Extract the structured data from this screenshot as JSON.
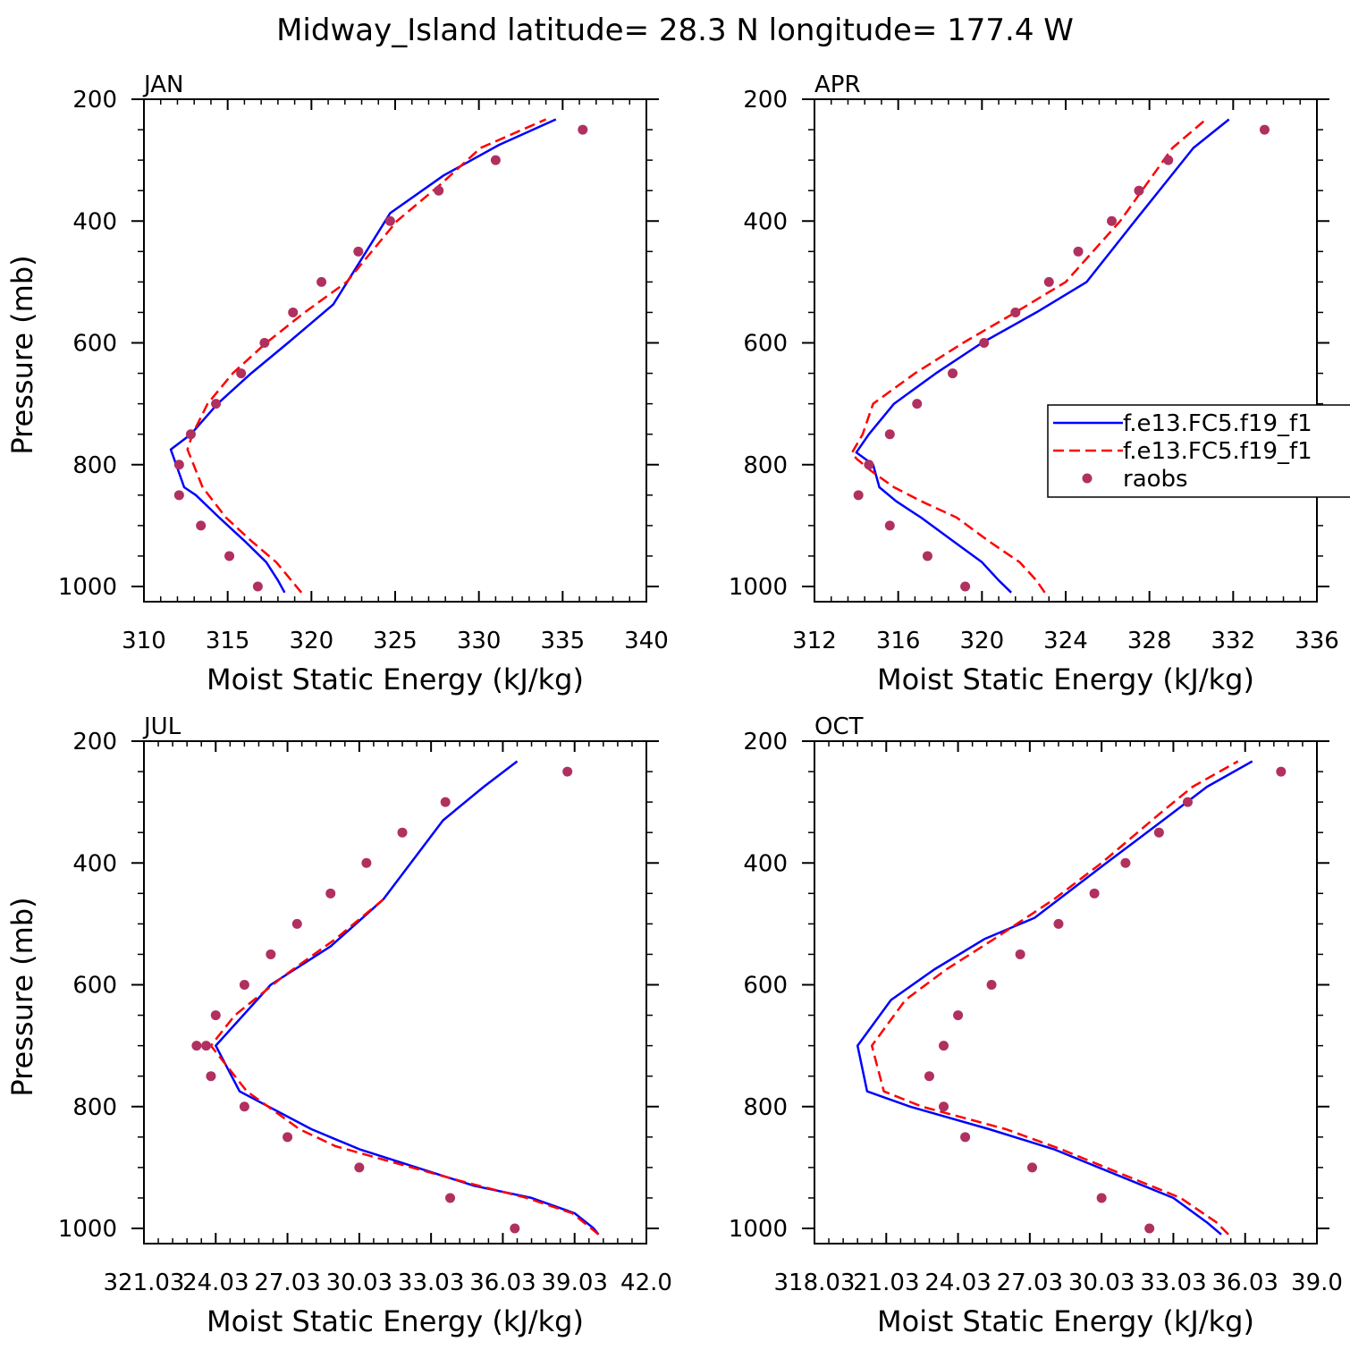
{
  "figure": {
    "title": "Midway_Island  latitude= 28.3 N longitude= 177.4 W"
  },
  "colors": {
    "model1": "#0000ff",
    "model2": "#ff0000",
    "raobs": "#b03060",
    "axes": "#000000",
    "background": "#ffffff"
  },
  "legend": {
    "placement": "right of APR panel (clipped at figure edge)",
    "entries": [
      {
        "label": "f.e13.FC5.f19_f1",
        "style": "solid",
        "color": "#0000ff"
      },
      {
        "label": "f.e13.FC5.f19_f1",
        "style": "dashed",
        "color": "#ff0000"
      },
      {
        "label": "raobs",
        "style": "marker",
        "color": "#b03060"
      }
    ]
  },
  "chart_data": [
    {
      "type": "line",
      "panel": "JAN",
      "title": "JAN",
      "xlabel": "Moist Static Energy (kJ/kg)",
      "ylabel": "Pressure (mb)",
      "xlim": [
        310,
        340
      ],
      "ylim": [
        1000,
        200
      ],
      "y_reversed": true,
      "x_ticks": [
        310,
        315,
        320,
        325,
        330,
        335,
        340
      ],
      "x_tick_labels": [
        "310",
        "315",
        "320",
        "325",
        "330",
        "335",
        "340"
      ],
      "y_ticks": [
        200,
        400,
        600,
        800,
        1000
      ],
      "y_tick_labels": [
        "200",
        "400",
        "600",
        "800",
        "1000"
      ],
      "series": [
        {
          "name": "f.e13.FC5.f19_f1",
          "style": "solid",
          "color": "#0000ff",
          "x": [
            318.4,
            318.0,
            317.3,
            316.0,
            314.5,
            313.1,
            312.4,
            311.6,
            312.8,
            314.4,
            316.4,
            318.6,
            321.3,
            324.7,
            327.9,
            331.2,
            334.6
          ],
          "y": [
            1010,
            990,
            960,
            925,
            887,
            850,
            837,
            775,
            750,
            700,
            650,
            600,
            537,
            387,
            325,
            275,
            233
          ]
        },
        {
          "name": "f.e13.FC5.f19_f1",
          "style": "dashed",
          "color": "#ff0000",
          "x": [
            319.4,
            318.8,
            317.9,
            316.4,
            314.9,
            313.5,
            312.6,
            312.9,
            313.8,
            315.3,
            317.3,
            319.6,
            322.1,
            325.1,
            327.7,
            330.1,
            334.0
          ],
          "y": [
            1010,
            990,
            960,
            925,
            887,
            837,
            775,
            750,
            700,
            650,
            600,
            550,
            500,
            400,
            340,
            280,
            233
          ]
        }
      ],
      "points": {
        "name": "raobs",
        "color": "#b03060",
        "x": [
          316.8,
          315.1,
          313.4,
          312.1,
          312.1,
          312.8,
          314.3,
          315.8,
          317.2,
          318.9,
          320.6,
          322.8,
          324.7,
          327.6,
          331.0,
          336.2
        ],
        "y": [
          1000,
          950,
          900,
          850,
          800,
          750,
          700,
          650,
          600,
          550,
          500,
          450,
          400,
          350,
          300,
          250
        ]
      }
    },
    {
      "type": "line",
      "panel": "APR",
      "title": "APR",
      "xlabel": "Moist Static Energy (kJ/kg)",
      "ylabel": "",
      "xlim": [
        312,
        336
      ],
      "ylim": [
        1000,
        200
      ],
      "y_reversed": true,
      "x_ticks": [
        312,
        316,
        320,
        324,
        328,
        332,
        336
      ],
      "x_tick_labels": [
        "312",
        "316",
        "320",
        "324",
        "328",
        "332",
        "336"
      ],
      "y_ticks": [
        200,
        400,
        600,
        800,
        1000
      ],
      "y_tick_labels": [
        "200",
        "400",
        "600",
        "800",
        "1000"
      ],
      "series": [
        {
          "name": "f.e13.FC5.f19_f1",
          "style": "solid",
          "color": "#0000ff",
          "x": [
            321.4,
            320.8,
            320.0,
            318.6,
            317.1,
            315.9,
            315.1,
            314.8,
            314.0,
            314.6,
            315.8,
            317.8,
            320.0,
            322.6,
            325.0,
            327.3,
            328.7,
            330.1,
            331.8
          ],
          "y": [
            1010,
            990,
            960,
            925,
            887,
            860,
            837,
            800,
            780,
            750,
            700,
            650,
            600,
            550,
            500,
            400,
            340,
            280,
            233
          ]
        },
        {
          "name": "f.e13.FC5.f19_f1",
          "style": "dashed",
          "color": "#ff0000",
          "x": [
            323.0,
            322.6,
            321.8,
            320.3,
            318.8,
            317.1,
            315.8,
            314.7,
            314.0,
            313.8,
            314.3,
            314.8,
            316.8,
            319.1,
            321.6,
            324.0,
            326.6,
            329.1,
            330.7
          ],
          "y": [
            1010,
            990,
            960,
            925,
            887,
            860,
            837,
            810,
            790,
            780,
            750,
            700,
            650,
            600,
            550,
            500,
            400,
            280,
            233
          ]
        }
      ],
      "points": {
        "name": "raobs",
        "color": "#b03060",
        "x": [
          319.2,
          317.4,
          315.6,
          314.1,
          314.6,
          315.6,
          316.9,
          318.6,
          320.1,
          321.6,
          323.2,
          324.6,
          326.2,
          327.5,
          328.9,
          333.5
        ],
        "y": [
          1000,
          950,
          900,
          850,
          800,
          750,
          700,
          650,
          600,
          550,
          500,
          450,
          400,
          350,
          300,
          250
        ]
      }
    },
    {
      "type": "line",
      "panel": "JUL",
      "title": "JUL",
      "xlabel": "Moist Static Energy (kJ/kg)",
      "ylabel": "Pressure (mb)",
      "xlim": [
        321.0,
        342.0
      ],
      "ylim": [
        1000,
        200
      ],
      "y_reversed": true,
      "x_ticks": [
        321.0,
        324.0,
        327.0,
        330.0,
        333.0,
        336.0,
        339.0,
        342.0
      ],
      "x_tick_labels": [
        "321.03",
        "24.03",
        "27.03",
        "30.03",
        "33.03",
        "36.03",
        "39.03",
        "42.0"
      ],
      "y_ticks": [
        200,
        400,
        600,
        800,
        1000
      ],
      "y_tick_labels": [
        "200",
        "400",
        "600",
        "800",
        "1000"
      ],
      "series": [
        {
          "name": "f.e13.FC5.f19_f1",
          "style": "solid",
          "color": "#0000ff",
          "x": [
            340.0,
            339.8,
            339.0,
            337.2,
            334.8,
            330.0,
            328.0,
            325.0,
            324.0,
            326.3,
            328.8,
            331.0,
            333.5,
            335.2,
            336.6
          ],
          "y": [
            1010,
            1000,
            975,
            950,
            930,
            870,
            837,
            775,
            700,
            600,
            537,
            460,
            330,
            275,
            233
          ]
        },
        {
          "name": "f.e13.FC5.f19_f1",
          "style": "dashed",
          "color": "#ff0000",
          "x": [
            340.0,
            339.7,
            338.9,
            337.0,
            334.5,
            331.0,
            329.0,
            327.5,
            325.3,
            323.8,
            324.8,
            326.8,
            329.0,
            331.0
          ],
          "y": [
            1010,
            1000,
            975,
            950,
            925,
            887,
            865,
            837,
            775,
            700,
            650,
            587,
            525,
            460
          ]
        }
      ],
      "points": {
        "name": "raobs",
        "color": "#b03060",
        "x": [
          336.5,
          333.8,
          330.0,
          327.0,
          325.2,
          323.8,
          323.6,
          323.2,
          324.0,
          325.2,
          326.3,
          327.4,
          328.8,
          330.3,
          331.8,
          333.6,
          338.7
        ],
        "y": [
          1000,
          950,
          900,
          850,
          800,
          750,
          700,
          700,
          650,
          600,
          550,
          500,
          450,
          400,
          350,
          300,
          250
        ]
      }
    },
    {
      "type": "line",
      "panel": "OCT",
      "title": "OCT",
      "xlabel": "Moist Static Energy (kJ/kg)",
      "ylabel": "",
      "xlim": [
        318.0,
        339.0
      ],
      "ylim": [
        1000,
        200
      ],
      "y_reversed": true,
      "x_ticks": [
        318.0,
        321.0,
        324.0,
        327.0,
        330.0,
        333.0,
        336.0,
        339.0
      ],
      "x_tick_labels": [
        "318.03",
        "21.03",
        "24.03",
        "27.03",
        "30.03",
        "33.03",
        "36.03",
        "39.0"
      ],
      "y_ticks": [
        200,
        400,
        600,
        800,
        1000
      ],
      "y_tick_labels": [
        "200",
        "400",
        "600",
        "800",
        "1000"
      ],
      "series": [
        {
          "name": "f.e13.FC5.f19_f1",
          "style": "solid",
          "color": "#0000ff",
          "x": [
            335.0,
            334.4,
            333.0,
            328.0,
            325.3,
            322.0,
            320.2,
            319.8,
            321.2,
            323.0,
            325.1,
            327.2,
            330.2,
            332.9,
            334.4,
            336.3
          ],
          "y": [
            1010,
            990,
            950,
            870,
            837,
            800,
            775,
            700,
            625,
            575,
            525,
            490,
            400,
            320,
            275,
            233
          ]
        },
        {
          "name": "f.e13.FC5.f19_f1",
          "style": "dashed",
          "color": "#ff0000",
          "x": [
            335.3,
            334.8,
            333.3,
            328.3,
            326.0,
            322.5,
            320.9,
            320.4,
            321.8,
            323.5,
            325.5,
            328.0,
            330.0,
            332.4,
            333.8,
            335.7
          ],
          "y": [
            1010,
            990,
            950,
            870,
            837,
            800,
            775,
            700,
            625,
            575,
            525,
            460,
            400,
            320,
            275,
            233
          ]
        }
      ],
      "points": {
        "name": "raobs",
        "color": "#b03060",
        "x": [
          332.0,
          330.0,
          327.1,
          324.3,
          323.4,
          322.8,
          323.4,
          324.0,
          325.4,
          326.6,
          328.2,
          329.7,
          331.0,
          332.4,
          333.6,
          337.5
        ],
        "y": [
          1000,
          950,
          900,
          850,
          800,
          750,
          700,
          650,
          600,
          550,
          500,
          450,
          400,
          350,
          300,
          250
        ]
      }
    }
  ]
}
